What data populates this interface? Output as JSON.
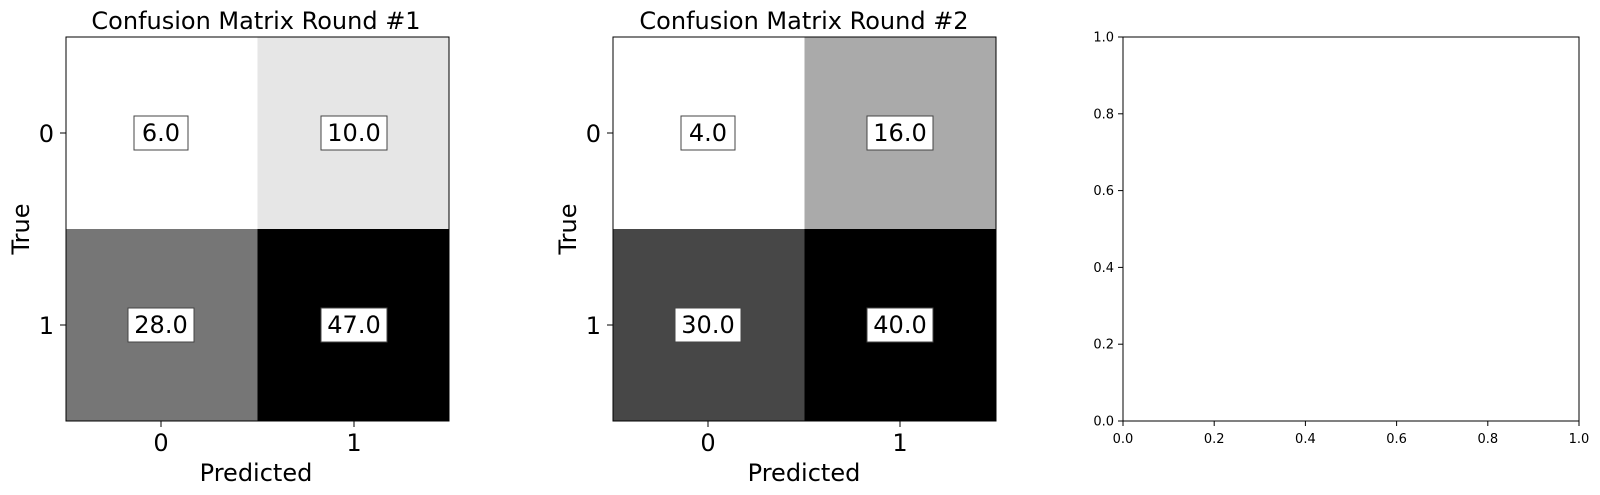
{
  "chart_data": [
    {
      "type": "heatmap",
      "title": "Confusion Matrix Round #1",
      "xlabel": "Predicted",
      "ylabel": "True",
      "x_categories": [
        "0",
        "1"
      ],
      "y_categories": [
        "0",
        "1"
      ],
      "values": [
        [
          6.0,
          10.0
        ],
        [
          28.0,
          47.0
        ]
      ],
      "value_labels": [
        [
          "6.0",
          "10.0"
        ],
        [
          "28.0",
          "47.0"
        ]
      ],
      "colormap": "grayscale (white = low, black = high)"
    },
    {
      "type": "heatmap",
      "title": "Confusion Matrix Round #2",
      "xlabel": "Predicted",
      "ylabel": "True",
      "x_categories": [
        "0",
        "1"
      ],
      "y_categories": [
        "0",
        "1"
      ],
      "values": [
        [
          4.0,
          16.0
        ],
        [
          30.0,
          40.0
        ]
      ],
      "value_labels": [
        [
          "4.0",
          "16.0"
        ],
        [
          "30.0",
          "40.0"
        ]
      ],
      "colormap": "grayscale (white = low, black = high)"
    },
    {
      "type": "scatter",
      "title": "",
      "xlabel": "",
      "ylabel": "",
      "xlim": [
        0.0,
        1.0
      ],
      "ylim": [
        0.0,
        1.0
      ],
      "x_ticks": [
        "0.0",
        "0.2",
        "0.4",
        "0.6",
        "0.8",
        "1.0"
      ],
      "y_ticks": [
        "0.0",
        "0.2",
        "0.4",
        "0.6",
        "0.8",
        "1.0"
      ],
      "series": []
    }
  ]
}
